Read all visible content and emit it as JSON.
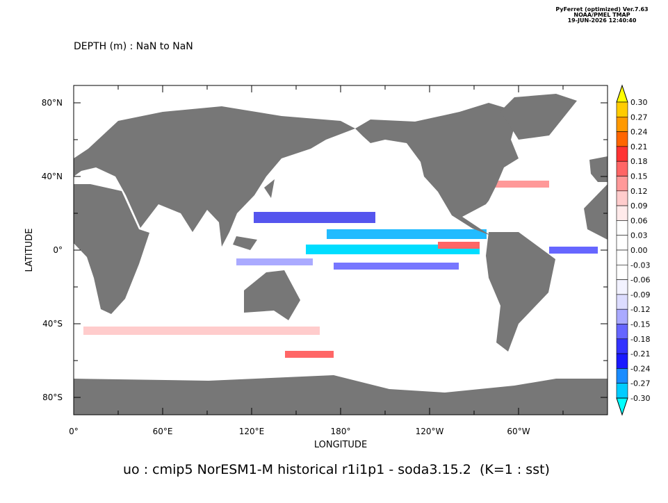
{
  "header": {
    "credits": [
      "PyFerret (optimized) Ver.7.63",
      "NOAA/PMEL TMAP",
      "19-JUN-2026 12:40:40"
    ],
    "subtitle": "DEPTH (m) : NaN to NaN",
    "title": "uo : cmip5 NorESM1-M historical r1i1p1 - soda3.15.2  (K=1 : sst)"
  },
  "axes": {
    "y_label": "LATITUDE",
    "x_label": "LONGITUDE",
    "y_ticks": [
      "80°N",
      "40°N",
      "0°",
      "40°S",
      "80°S"
    ],
    "x_ticks": [
      "0°",
      "60°E",
      "120°E",
      "180°",
      "120°W",
      "60°W"
    ]
  },
  "colorbar": {
    "labels": [
      "0.30",
      "0.27",
      "0.24",
      "0.21",
      "0.18",
      "0.15",
      "0.12",
      "0.09",
      "0.06",
      "0.03",
      "0.00",
      "-0.03",
      "-0.06",
      "-0.09",
      "-0.12",
      "-0.15",
      "-0.18",
      "-0.21",
      "-0.24",
      "-0.27",
      "-0.30"
    ],
    "colors": [
      "#ffff00",
      "#ffcc00",
      "#ff9900",
      "#ff6600",
      "#ff3333",
      "#ff6666",
      "#ff9999",
      "#ffcccc",
      "#ffeaea",
      "#ffffff",
      "#ffffff",
      "#ffffff",
      "#ffffff",
      "#f2f2ff",
      "#dcdcff",
      "#aaaaff",
      "#6666ff",
      "#3333ff",
      "#1a1aff",
      "#1a8cff",
      "#00ccff",
      "#00ffff"
    ]
  }
}
